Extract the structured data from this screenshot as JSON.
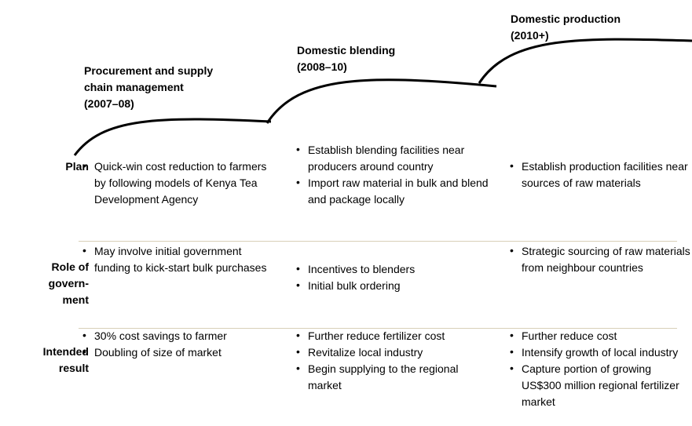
{
  "phases": [
    {
      "title": [
        "Procurement and supply",
        "chain management",
        "(2007–08)"
      ]
    },
    {
      "title": [
        "Domestic blending",
        "(2008–10)"
      ]
    },
    {
      "title": [
        "Domestic production",
        "(2010+)"
      ]
    }
  ],
  "rows": [
    {
      "label": [
        "Plan"
      ],
      "cells": [
        [
          "Quick-win cost reduction to farmers by following models of Kenya Tea Development Agency"
        ],
        [
          "Establish blending facilities near producers around country",
          "Import raw material in bulk and blend and package locally"
        ],
        [
          "Establish production facilities near sources of raw materials"
        ]
      ]
    },
    {
      "label": [
        "Role of",
        "govern-",
        "ment"
      ],
      "cells": [
        [
          "May involve initial government funding to kick-start bulk purchases"
        ],
        [
          "Incentives to blenders",
          "Initial bulk ordering"
        ],
        [
          "Strategic sourcing of raw materials from neighbour countries"
        ]
      ]
    },
    {
      "label": [
        "Intended",
        "result"
      ],
      "cells": [
        [
          "30% cost savings to farmer",
          "Doubling of size of market"
        ],
        [
          "Further reduce fertilizer cost",
          "Revitalize local industry",
          "Begin supplying to the regional market"
        ],
        [
          "Further reduce cost",
          "Intensify growth of local industry",
          "Capture portion of growing US$300 million regional fertilizer market"
        ]
      ]
    }
  ]
}
